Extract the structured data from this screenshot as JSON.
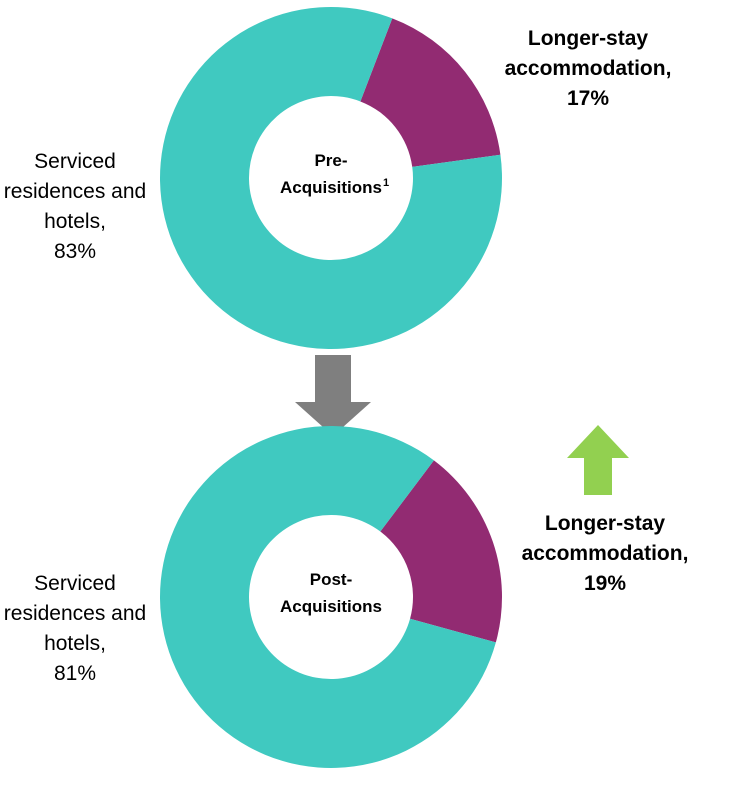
{
  "chart_data": [
    {
      "type": "pie",
      "title": "Pre-Acquisitions",
      "footnote": "1",
      "categories": [
        "Serviced residences and hotels,",
        "Longer-stay accommodation,"
      ],
      "values": [
        83,
        17
      ],
      "value_labels": [
        "83%",
        "17%"
      ],
      "colors": [
        "#40c9c0",
        "#922b72"
      ],
      "donut": true
    },
    {
      "type": "pie",
      "title": "Post-Acquisitions",
      "categories": [
        "Serviced residences and hotels,",
        "Longer-stay accommodation,"
      ],
      "values": [
        81,
        19
      ],
      "value_labels": [
        "81%",
        "19%"
      ],
      "colors": [
        "#40c9c0",
        "#922b72"
      ],
      "donut": true
    }
  ]
}
